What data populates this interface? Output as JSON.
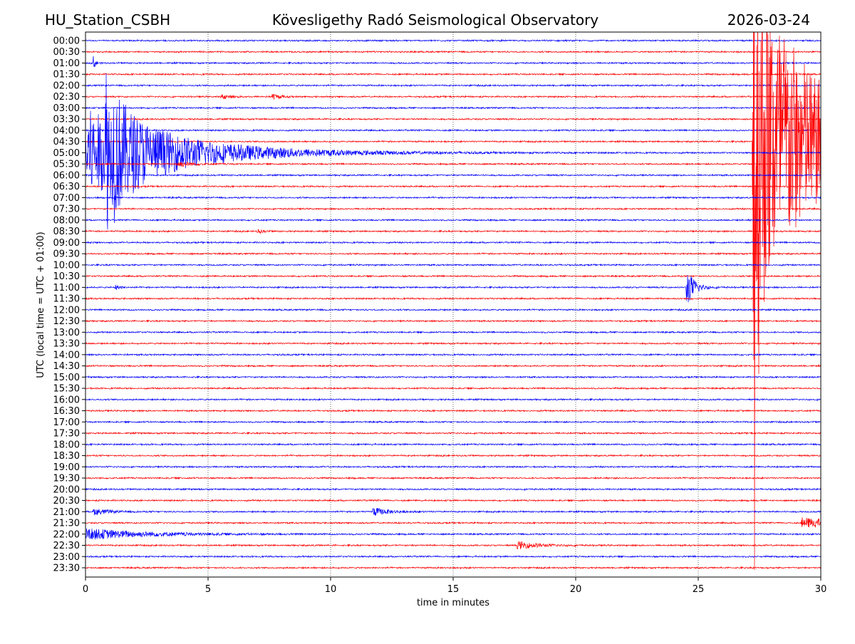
{
  "chart_data": {
    "type": "line",
    "title_left": "HU_Station_CSBH",
    "title_center": "Kövesligethy Radó Seismological Observatory",
    "title_right": "2026-03-24",
    "xlabel": "time in minutes",
    "ylabel": "UTC (local time = UTC + 01:00)",
    "xlim": [
      0,
      30
    ],
    "xticks": [
      "0",
      "5",
      "10",
      "15",
      "20",
      "25",
      "30"
    ],
    "grid": "vertical dotted at every 5 minutes",
    "trace_colors": [
      "#0000ff",
      "#ff0000"
    ],
    "trace_labels": [
      "00:00",
      "00:30",
      "01:00",
      "01:30",
      "02:00",
      "02:30",
      "03:00",
      "03:30",
      "04:00",
      "04:30",
      "05:00",
      "05:30",
      "06:00",
      "06:30",
      "07:00",
      "07:30",
      "08:00",
      "08:30",
      "09:00",
      "09:30",
      "10:00",
      "10:30",
      "11:00",
      "11:30",
      "12:00",
      "12:30",
      "13:00",
      "13:30",
      "14:00",
      "14:30",
      "15:00",
      "15:30",
      "16:00",
      "16:30",
      "17:00",
      "17:30",
      "18:00",
      "18:30",
      "19:00",
      "19:30",
      "20:00",
      "20:30",
      "21:00",
      "21:30",
      "22:00",
      "22:30",
      "23:00",
      "23:30"
    ],
    "noise_amplitude": 0.08,
    "amplitude_unit": "trace spacings",
    "events": [
      {
        "trace": 2,
        "start_min": 0.3,
        "amplitude": 0.9,
        "decay_min": 0.08
      },
      {
        "trace": 10,
        "start_min": 0.0,
        "amplitude": 4.0,
        "decay_min": 3.5
      },
      {
        "trace": 10,
        "start_min": 0.8,
        "amplitude": 7.5,
        "decay_min": 0.15
      },
      {
        "trace": 10,
        "start_min": 1.1,
        "amplitude": 3.0,
        "decay_min": 1.0
      },
      {
        "trace": 5,
        "start_min": 5.5,
        "amplitude": 0.2,
        "decay_min": 0.4
      },
      {
        "trace": 5,
        "start_min": 7.6,
        "amplitude": 0.3,
        "decay_min": 0.3
      },
      {
        "trace": 11,
        "start_min": 3.7,
        "amplitude": 0.3,
        "decay_min": 0.6
      },
      {
        "trace": 17,
        "start_min": 7.0,
        "amplitude": 0.25,
        "decay_min": 0.2
      },
      {
        "trace": 22,
        "start_min": 1.2,
        "amplitude": 0.25,
        "decay_min": 0.2
      },
      {
        "trace": 22,
        "start_min": 24.5,
        "amplitude": 2.0,
        "decay_min": 0.3
      },
      {
        "trace": 42,
        "start_min": 0.3,
        "amplitude": 0.3,
        "decay_min": 0.6
      },
      {
        "trace": 42,
        "start_min": 11.7,
        "amplitude": 0.4,
        "decay_min": 0.6
      },
      {
        "trace": 43,
        "start_min": 29.2,
        "amplitude": 0.45,
        "decay_min": 2.0
      },
      {
        "trace": 44,
        "start_min": 0.0,
        "amplitude": 0.5,
        "decay_min": 2.5
      },
      {
        "trace": 45,
        "start_min": 17.6,
        "amplitude": 0.35,
        "decay_min": 0.8
      },
      {
        "trace": 9,
        "start_min": 27.2,
        "amplitude": 17.0,
        "decay_min": 2.5
      },
      {
        "trace": 9,
        "start_min": 27.25,
        "amplitude": 38.0,
        "decay_min": 0.12
      }
    ]
  }
}
